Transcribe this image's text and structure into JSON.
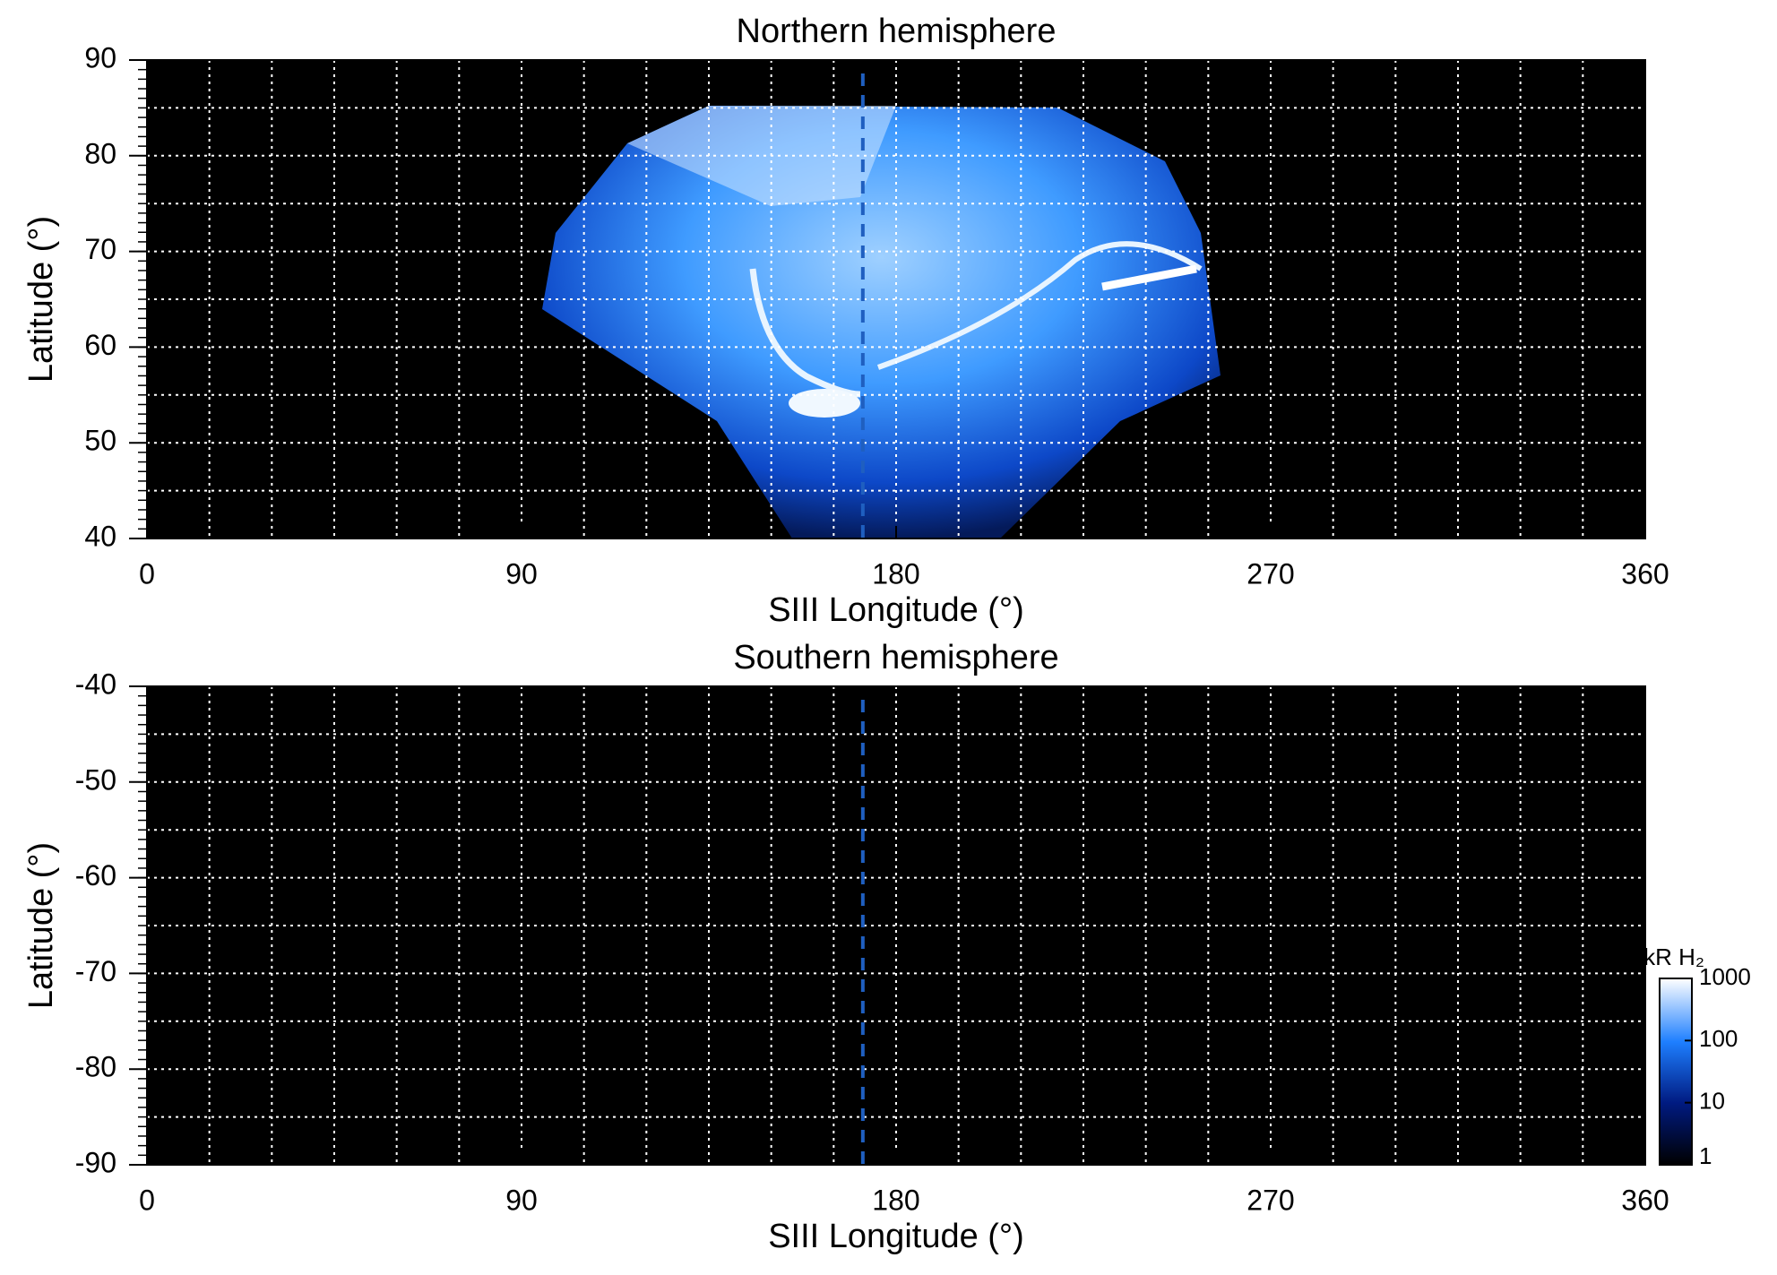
{
  "chart_data": [
    {
      "type": "heatmap",
      "title": "Northern hemisphere",
      "xlabel": "SIII Longitude (°)",
      "ylabel": "Latitude (°)",
      "xlim": [
        0,
        360
      ],
      "xticks": [
        0,
        90,
        180,
        270,
        360
      ],
      "ylim": [
        40,
        90
      ],
      "yticks": [
        40,
        50,
        60,
        70,
        80,
        90
      ],
      "grid": true,
      "grid_spacing": [
        15,
        5
      ],
      "vline": 172,
      "vline_color": "#1f5fc0",
      "background": "#000000"
    },
    {
      "type": "heatmap",
      "title": "Southern hemisphere",
      "xlabel": "SIII Longitude (°)",
      "ylabel": "Latitude (°)",
      "xlim": [
        0,
        360
      ],
      "xticks": [
        0,
        90,
        180,
        270,
        360
      ],
      "ylim": [
        -90,
        -40
      ],
      "yticks": [
        -90,
        -80,
        -70,
        -60,
        -50,
        -40
      ],
      "grid": true,
      "grid_spacing": [
        15,
        5
      ],
      "vline": 172,
      "vline_color": "#1f5fc0",
      "background": "#000000",
      "colorbar": {
        "label": "kR H₂",
        "scale": "log",
        "lim": [
          1,
          1000
        ],
        "ticks": [
          1,
          10,
          100,
          1000
        ]
      }
    }
  ]
}
